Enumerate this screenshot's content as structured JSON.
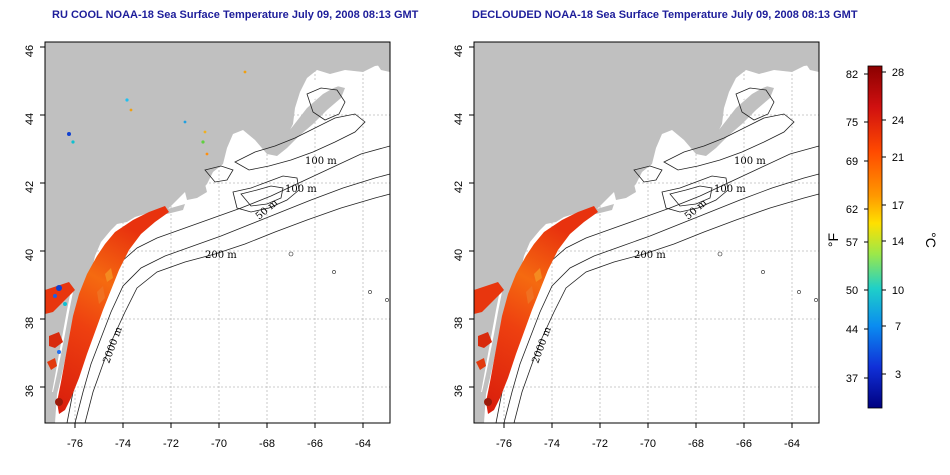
{
  "titles": {
    "left": "RU COOL NOAA-18 Sea Surface Temperature July 09, 2008 08:13 GMT",
    "right": "DECLOUDED NOAA-18 Sea Surface Temperature July 09, 2008 08:13 GMT"
  },
  "axes": {
    "lon_ticks": [
      "-76",
      "-74",
      "-72",
      "-70",
      "-68",
      "-66",
      "-64"
    ],
    "lat_ticks": [
      "36",
      "38",
      "40",
      "42",
      "44",
      "46"
    ]
  },
  "contour_labels": {
    "left": [
      "100 m",
      "100 m",
      "50 m",
      "200 m",
      "2000 m"
    ],
    "right": [
      "100 m",
      "100 m",
      "50 m",
      "200 m",
      "2000 m"
    ]
  },
  "colorbar": {
    "f_label": "°F",
    "c_label": "°C",
    "f_ticks": [
      "82",
      "75",
      "69",
      "62",
      "57",
      "50",
      "44",
      "37"
    ],
    "c_ticks": [
      "28",
      "24",
      "21",
      "17",
      "14",
      "10",
      "7",
      "3"
    ],
    "colors": [
      "#8b0000",
      "#d01010",
      "#ff4a00",
      "#ff9900",
      "#ffe000",
      "#9be84a",
      "#1fd0c8",
      "#0a8cf0",
      "#1030d8",
      "#000080"
    ]
  },
  "colors": {
    "land": "#c0c0c0",
    "ocean": "#ffffff",
    "sst_warm": "#e83a10",
    "title": "#1d1d9a"
  }
}
